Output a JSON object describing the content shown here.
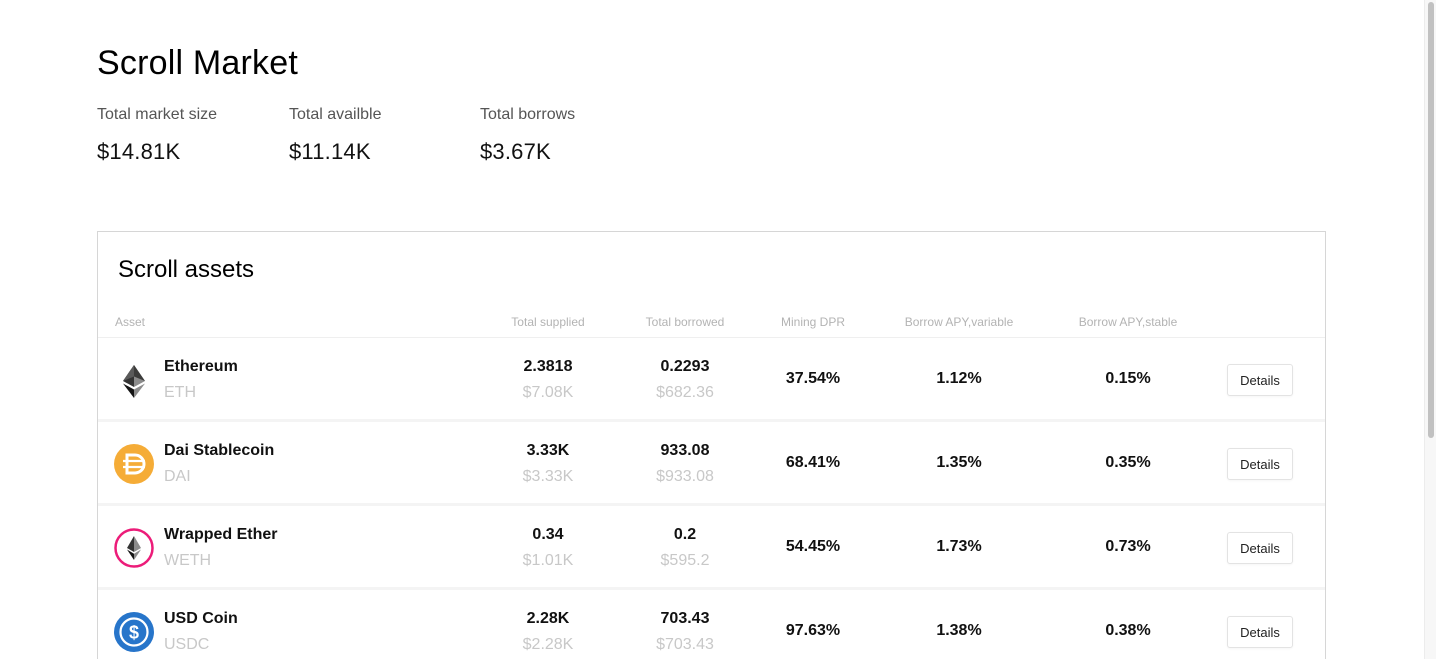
{
  "page": {
    "title": "Scroll Market"
  },
  "stats": [
    {
      "label": "Total market size",
      "value": "$14.81K"
    },
    {
      "label": "Total availble",
      "value": "$11.14K"
    },
    {
      "label": "Total borrows",
      "value": "$3.67K"
    }
  ],
  "assets_section": {
    "title": "Scroll assets",
    "columns": {
      "asset": "Asset",
      "total_supplied": "Total supplied",
      "total_borrowed": "Total borrowed",
      "mining_dpr": "Mining DPR",
      "borrow_apy_variable": "Borrow APY,variable",
      "borrow_apy_stable": "Borrow APY,stable"
    },
    "rows": [
      {
        "name": "Ethereum",
        "symbol": "ETH",
        "icon": "ethereum-icon",
        "supplied": "2.3818",
        "supplied_usd": "$7.08K",
        "borrowed": "0.2293",
        "borrowed_usd": "$682.36",
        "mining_dpr": "37.54%",
        "borrow_variable": "1.12%",
        "borrow_stable": "0.15%",
        "action": "Details"
      },
      {
        "name": "Dai Stablecoin",
        "symbol": "DAI",
        "icon": "dai-icon",
        "supplied": "3.33K",
        "supplied_usd": "$3.33K",
        "borrowed": "933.08",
        "borrowed_usd": "$933.08",
        "mining_dpr": "68.41%",
        "borrow_variable": "1.35%",
        "borrow_stable": "0.35%",
        "action": "Details"
      },
      {
        "name": "Wrapped Ether",
        "symbol": "WETH",
        "icon": "wrapped-ether-icon",
        "supplied": "0.34",
        "supplied_usd": "$1.01K",
        "borrowed": "0.2",
        "borrowed_usd": "$595.2",
        "mining_dpr": "54.45%",
        "borrow_variable": "1.73%",
        "borrow_stable": "0.73%",
        "action": "Details"
      },
      {
        "name": "USD Coin",
        "symbol": "USDC",
        "icon": "usd-coin-icon",
        "supplied": "2.28K",
        "supplied_usd": "$2.28K",
        "borrowed": "703.43",
        "borrowed_usd": "$703.43",
        "mining_dpr": "97.63%",
        "borrow_variable": "1.38%",
        "borrow_stable": "0.38%",
        "action": "Details"
      }
    ]
  },
  "colors": {
    "dai": "#F5AC37",
    "weth_ring": "#EC1C79",
    "usdc": "#2775CA",
    "muted_text": "#c8c8c8",
    "header_text": "#b3b3b3"
  }
}
